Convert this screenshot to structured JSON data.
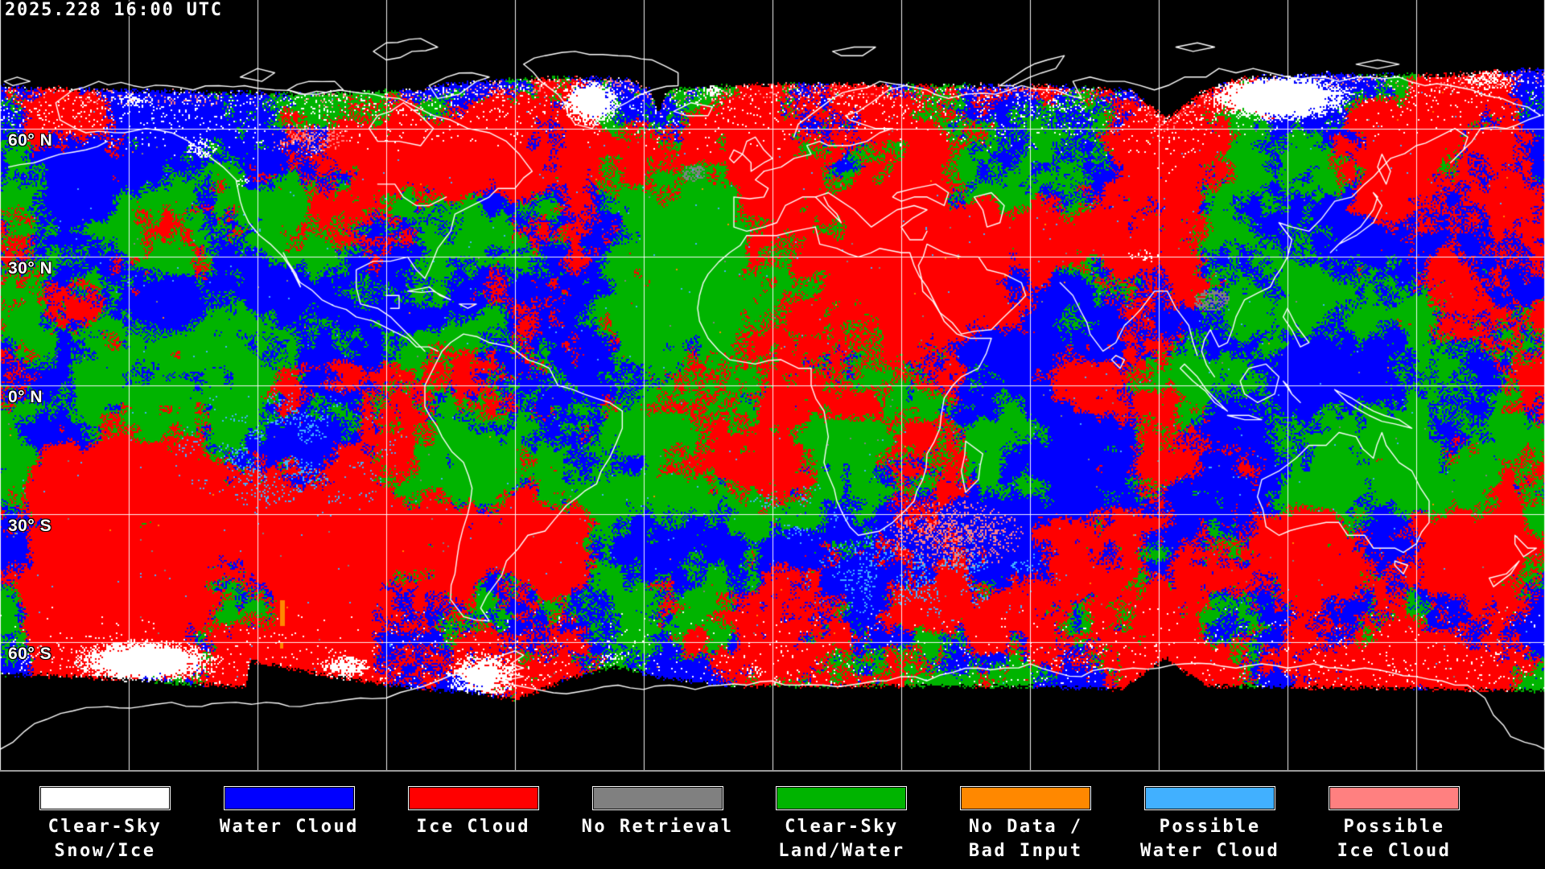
{
  "header": {
    "timestamp": "2025.228 16:00 UTC"
  },
  "map": {
    "latitude_labels": [
      {
        "text": "60° N"
      },
      {
        "text": "30° N"
      },
      {
        "text": "0° N"
      },
      {
        "text": "30° S"
      },
      {
        "text": "60° S"
      }
    ],
    "grid_color": "#ffffff",
    "coastline_color": "#ffffff",
    "background_color": "#000000",
    "separator_color": "#9a9a9a"
  },
  "palette": {
    "clear_sky_snow_ice": "#ffffff",
    "water_cloud": "#0000ff",
    "ice_cloud": "#ff0000",
    "no_retrieval": "#808080",
    "clear_sky_land_water": "#00b400",
    "no_data_bad_input": "#ff8800",
    "possible_water_cloud": "#41b0ff",
    "possible_ice_cloud": "#ff8080"
  },
  "legend": {
    "items": [
      {
        "lines": [
          "Clear-Sky",
          "Snow/Ice"
        ],
        "color": "#ffffff"
      },
      {
        "lines": [
          "Water Cloud"
        ],
        "color": "#0000ff"
      },
      {
        "lines": [
          "Ice Cloud"
        ],
        "color": "#ff0000"
      },
      {
        "lines": [
          "No Retrieval"
        ],
        "color": "#808080"
      },
      {
        "lines": [
          "Clear-Sky",
          "Land/Water"
        ],
        "color": "#00b400"
      },
      {
        "lines": [
          "No Data /",
          "Bad Input"
        ],
        "color": "#ff8800"
      },
      {
        "lines": [
          "Possible",
          "Water Cloud"
        ],
        "color": "#41b0ff"
      },
      {
        "lines": [
          "Possible",
          "Ice Cloud"
        ],
        "color": "#ff8080"
      }
    ]
  }
}
